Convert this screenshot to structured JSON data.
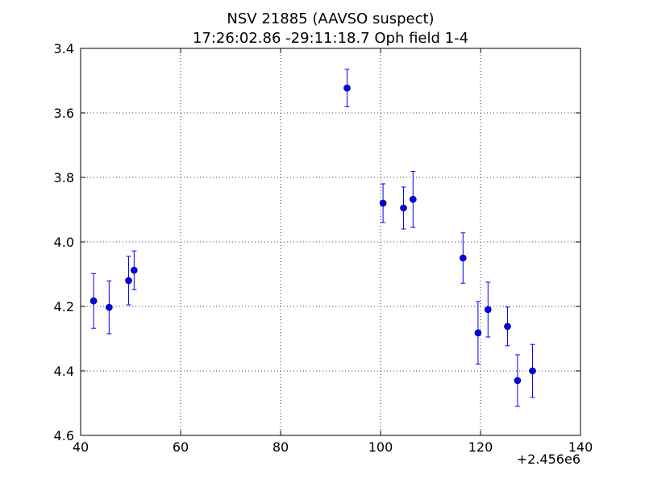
{
  "chart_data": {
    "type": "scatter",
    "title": "NSV 21885 (AAVSO suspect)",
    "subtitle": "17:26:02.86 -29:11:18.7 Oph field 1-4",
    "xlabel": "",
    "ylabel": "",
    "x_offset_label": "+2.456e6",
    "xlim": [
      40,
      140
    ],
    "ylim": [
      4.6,
      3.4
    ],
    "y_inverted": true,
    "grid": true,
    "x_ticks": [
      40,
      60,
      80,
      100,
      120,
      140
    ],
    "x_tick_labels": [
      "40",
      "60",
      "80",
      "100",
      "120",
      "140"
    ],
    "y_ticks": [
      3.4,
      3.6,
      3.8,
      4.0,
      4.2,
      4.4,
      4.6
    ],
    "y_tick_labels": [
      "3.4",
      "3.6",
      "3.8",
      "4.0",
      "4.2",
      "4.4",
      "4.6"
    ],
    "point_color": "#0000ff",
    "points": [
      {
        "x": 42.6,
        "y": 4.183,
        "err": 0.085
      },
      {
        "x": 45.7,
        "y": 4.203,
        "err": 0.082
      },
      {
        "x": 49.6,
        "y": 4.12,
        "err": 0.075
      },
      {
        "x": 50.7,
        "y": 4.088,
        "err": 0.06
      },
      {
        "x": 93.3,
        "y": 3.523,
        "err": 0.058
      },
      {
        "x": 100.5,
        "y": 3.88,
        "err": 0.06
      },
      {
        "x": 104.6,
        "y": 3.895,
        "err": 0.065
      },
      {
        "x": 106.5,
        "y": 3.868,
        "err": 0.087
      },
      {
        "x": 116.5,
        "y": 4.05,
        "err": 0.078
      },
      {
        "x": 119.5,
        "y": 4.282,
        "err": 0.097
      },
      {
        "x": 121.5,
        "y": 4.21,
        "err": 0.085
      },
      {
        "x": 125.4,
        "y": 4.262,
        "err": 0.06
      },
      {
        "x": 127.4,
        "y": 4.43,
        "err": 0.08
      },
      {
        "x": 130.4,
        "y": 4.4,
        "err": 0.082
      }
    ]
  }
}
